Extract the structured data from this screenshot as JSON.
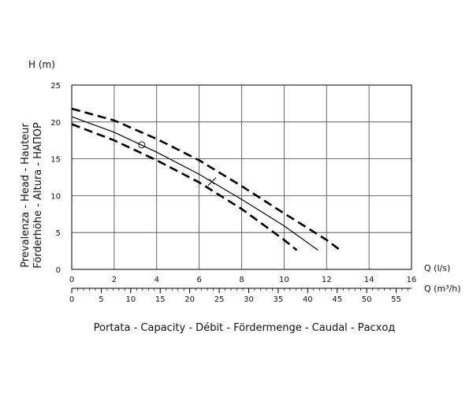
{
  "chart_data": {
    "type": "line",
    "ylabel": "H (m)",
    "ylabel_side": [
      "Prevalenza - Head - Hauteur",
      "Förderhöhe - Altura - НАПОР"
    ],
    "xlabel": "Q (l/s)",
    "x2label": "Q (m³/h)",
    "title_bottom": "Portata - Capacity - Débit - Fördermenge - Caudal - Расход",
    "xlim": [
      0,
      16
    ],
    "xticks": [
      0,
      2,
      4,
      6,
      8,
      10,
      12,
      14,
      16
    ],
    "ylim": [
      0,
      25
    ],
    "yticks": [
      0,
      5,
      10,
      15,
      20,
      25
    ],
    "x2lim": [
      0,
      57.6
    ],
    "x2ticks": [
      0,
      5,
      10,
      15,
      20,
      25,
      30,
      35,
      40,
      45,
      50,
      55
    ],
    "x2minor": 1,
    "grid": true,
    "series": [
      {
        "color": "#000000",
        "dash": false,
        "x": [
          0,
          2,
          4,
          6,
          8,
          10,
          11.6
        ],
        "values": [
          20.7,
          18.6,
          15.9,
          12.9,
          9.5,
          5.9,
          2.6
        ]
      },
      {
        "color": "#000000",
        "dash": true,
        "x": [
          0,
          2,
          4,
          6,
          8,
          10,
          12,
          12.6
        ],
        "values": [
          21.8,
          20.2,
          17.7,
          14.8,
          11.3,
          7.6,
          4.0,
          2.7
        ]
      },
      {
        "color": "#000000",
        "dash": true,
        "x": [
          0,
          2,
          4,
          6,
          8,
          10,
          10.6
        ],
        "values": [
          19.7,
          17.5,
          14.8,
          11.8,
          8.2,
          4.0,
          2.6
        ]
      }
    ],
    "markers": [
      {
        "x": 3.3,
        "y": 16.9,
        "shape": "circle"
      },
      {
        "x": 6.6,
        "y": 11.9,
        "shape": "cross"
      }
    ]
  }
}
